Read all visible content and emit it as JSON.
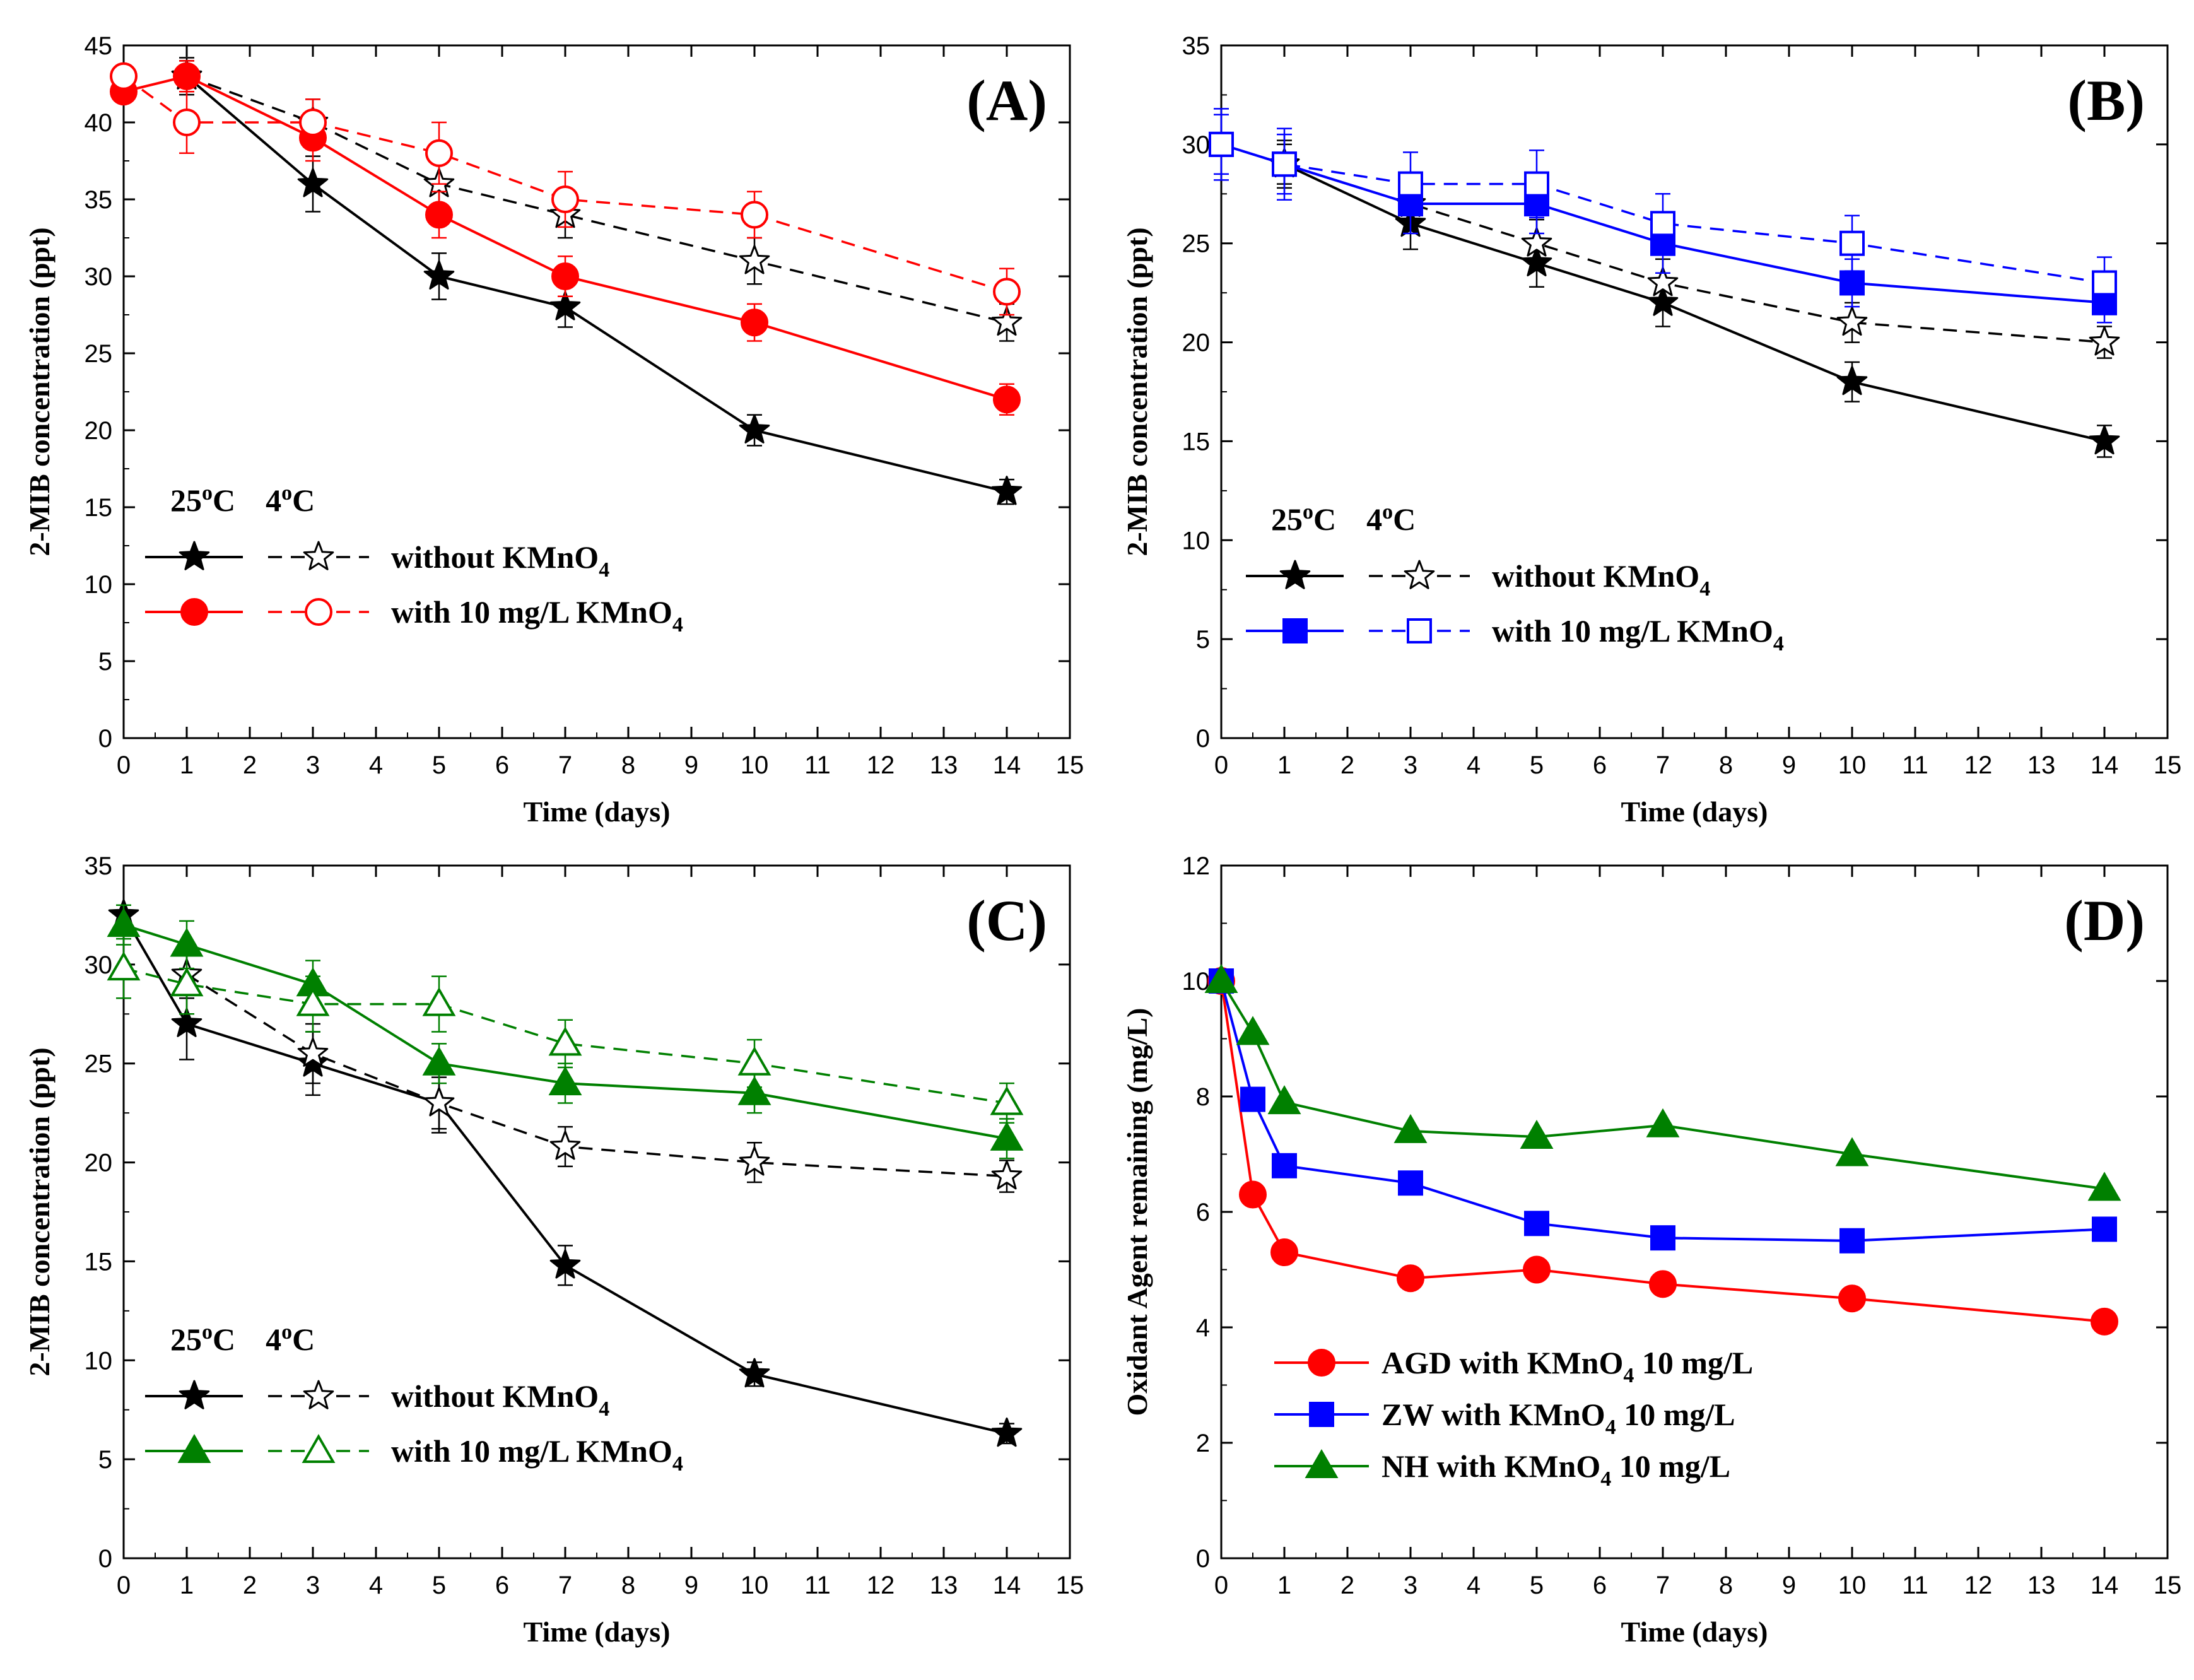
{
  "chart_data": [
    {
      "type": "line",
      "panel_label": "(A)",
      "xlabel": "Time (days)",
      "ylabel": "2-MIB concentration (ppt)",
      "xlim": [
        0,
        15
      ],
      "ylim": [
        0,
        45
      ],
      "xticks": [
        0,
        1,
        2,
        3,
        4,
        5,
        6,
        7,
        8,
        9,
        10,
        11,
        12,
        13,
        14,
        15
      ],
      "yticks": [
        0,
        5,
        10,
        15,
        20,
        25,
        30,
        35,
        40,
        45
      ],
      "legend": {
        "temp_25": "25",
        "temp_4": "4",
        "degree": "o",
        "celsius": "C",
        "entries": [
          {
            "prefix": "without KMnO",
            "subscript": "4"
          },
          {
            "prefix": "with 10 mg/L KMnO",
            "subscript": "4"
          }
        ]
      },
      "series": [
        {
          "name": "without KMnO4 25°C",
          "color": "#000000",
          "marker": "star",
          "filled": true,
          "dashed": false,
          "x": [
            1,
            3,
            5,
            7,
            10,
            14
          ],
          "y": [
            43,
            36,
            30,
            28,
            20,
            16
          ],
          "err": [
            1.2,
            1.8,
            1.5,
            1.3,
            1,
            0.8
          ]
        },
        {
          "name": "without KMnO4 4°C",
          "color": "#000000",
          "marker": "star",
          "filled": false,
          "dashed": true,
          "x": [
            1,
            3,
            5,
            7,
            10,
            14
          ],
          "y": [
            43,
            40,
            36,
            34,
            31,
            27
          ],
          "err": [
            1,
            1.5,
            1.5,
            1.5,
            1.5,
            1.2
          ]
        },
        {
          "name": "with 10 mg/L KMnO4 25°C",
          "color": "#ff0000",
          "marker": "circle",
          "filled": true,
          "dashed": false,
          "x": [
            0,
            1,
            3,
            5,
            7,
            10,
            14
          ],
          "y": [
            42,
            43,
            39,
            34,
            30,
            27,
            22
          ],
          "err": [
            0,
            1,
            1.5,
            1.5,
            1.3,
            1.2,
            1
          ]
        },
        {
          "name": "with 10 mg/L KMnO4 4°C",
          "color": "#ff0000",
          "marker": "circle",
          "filled": false,
          "dashed": true,
          "x": [
            0,
            1,
            3,
            5,
            7,
            10,
            14
          ],
          "y": [
            43,
            40,
            40,
            38,
            35,
            34,
            29
          ],
          "err": [
            0,
            2,
            1.5,
            2,
            1.8,
            1.5,
            1.5
          ]
        }
      ]
    },
    {
      "type": "line",
      "panel_label": "(B)",
      "xlabel": "Time (days)",
      "ylabel": "2-MIB concentration (ppt)",
      "xlim": [
        0,
        15
      ],
      "ylim": [
        0,
        35
      ],
      "xticks": [
        0,
        1,
        2,
        3,
        4,
        5,
        6,
        7,
        8,
        9,
        10,
        11,
        12,
        13,
        14,
        15
      ],
      "yticks": [
        0,
        5,
        10,
        15,
        20,
        25,
        30,
        35
      ],
      "legend": {
        "temp_25": "25",
        "temp_4": "4",
        "degree": "o",
        "celsius": "C",
        "entries": [
          {
            "prefix": "without KMnO",
            "subscript": "4"
          },
          {
            "prefix": "with 10 mg/L KMnO",
            "subscript": "4"
          }
        ]
      },
      "series": [
        {
          "name": "without KMnO4 25°C",
          "color": "#000000",
          "marker": "star",
          "filled": true,
          "dashed": false,
          "x": [
            1,
            3,
            5,
            7,
            10,
            14
          ],
          "y": [
            29,
            26,
            24,
            22,
            18,
            15
          ],
          "err": [
            1.2,
            1.3,
            1.2,
            1.2,
            1,
            0.8
          ]
        },
        {
          "name": "without KMnO4 4°C",
          "color": "#000000",
          "marker": "star",
          "filled": false,
          "dashed": true,
          "x": [
            1,
            3,
            5,
            7,
            10,
            14
          ],
          "y": [
            29,
            27,
            25,
            23,
            21,
            20
          ],
          "err": [
            1,
            1.3,
            1.2,
            1.2,
            1,
            0.8
          ]
        },
        {
          "name": "with 10 mg/L KMnO4 25°C",
          "color": "#0000ff",
          "marker": "square",
          "filled": true,
          "dashed": false,
          "x": [
            0,
            1,
            3,
            5,
            7,
            10,
            14
          ],
          "y": [
            30,
            29,
            27,
            27,
            25,
            23,
            22
          ],
          "err": [
            1.5,
            1.5,
            1.5,
            1.5,
            1.5,
            1.2,
            1
          ]
        },
        {
          "name": "with 10 mg/L KMnO4 4°C",
          "color": "#0000ff",
          "marker": "square",
          "filled": false,
          "dashed": true,
          "x": [
            0,
            1,
            3,
            5,
            7,
            10,
            14
          ],
          "y": [
            30,
            29,
            28,
            28,
            26,
            25,
            23
          ],
          "err": [
            1.8,
            1.8,
            1.6,
            1.7,
            1.5,
            1.4,
            1.3
          ]
        }
      ]
    },
    {
      "type": "line",
      "panel_label": "(C)",
      "xlabel": "Time (days)",
      "ylabel": "2-MIB concentration (ppt)",
      "xlim": [
        0,
        15
      ],
      "ylim": [
        0,
        35
      ],
      "xticks": [
        0,
        1,
        2,
        3,
        4,
        5,
        6,
        7,
        8,
        9,
        10,
        11,
        12,
        13,
        14,
        15
      ],
      "yticks": [
        0,
        5,
        10,
        15,
        20,
        25,
        30,
        35
      ],
      "legend": {
        "temp_25": "25",
        "temp_4": "4",
        "degree": "o",
        "celsius": "C",
        "entries": [
          {
            "prefix": "without KMnO",
            "subscript": "4"
          },
          {
            "prefix": "with 10 mg/L KMnO",
            "subscript": "4"
          }
        ]
      },
      "series": [
        {
          "name": "without KMnO4 25°C",
          "color": "#000000",
          "marker": "star",
          "filled": true,
          "dashed": false,
          "x": [
            0,
            1,
            3,
            5,
            7,
            10,
            14
          ],
          "y": [
            32.5,
            27,
            25,
            23,
            14.8,
            9.3,
            6.3
          ],
          "err": [
            0.5,
            1.8,
            1.6,
            1.5,
            1,
            0.6,
            0.5
          ]
        },
        {
          "name": "without KMnO4 4°C",
          "color": "#000000",
          "marker": "star",
          "filled": false,
          "dashed": true,
          "x": [
            1,
            3,
            5,
            7,
            10,
            14
          ],
          "y": [
            29.5,
            25.5,
            23,
            20.8,
            20,
            19.3
          ],
          "err": [
            1.2,
            1.5,
            1.3,
            1,
            1,
            0.8
          ]
        },
        {
          "name": "with 10 mg/L KMnO4 25°C",
          "color": "#008000",
          "marker": "triangle",
          "filled": true,
          "dashed": false,
          "x": [
            0,
            1,
            3,
            5,
            7,
            10,
            14
          ],
          "y": [
            32,
            31,
            29,
            25,
            24,
            23.5,
            21.2
          ],
          "err": [
            1,
            1.2,
            1.2,
            1,
            1,
            1,
            1
          ]
        },
        {
          "name": "with 10 mg/L KMnO4 4°C",
          "color": "#008000",
          "marker": "triangle",
          "filled": false,
          "dashed": true,
          "x": [
            0,
            1,
            3,
            5,
            7,
            10,
            14
          ],
          "y": [
            29.8,
            29,
            28,
            28,
            26,
            25,
            23
          ],
          "err": [
            1.5,
            1.5,
            1.4,
            1.4,
            1.2,
            1.2,
            1
          ]
        }
      ]
    },
    {
      "type": "line",
      "panel_label": "(D)",
      "xlabel": "Time (days)",
      "ylabel": "Oxidant Agent remaining (mg/L)",
      "xlim": [
        0,
        15
      ],
      "ylim": [
        0,
        12
      ],
      "xticks": [
        0,
        1,
        2,
        3,
        4,
        5,
        6,
        7,
        8,
        9,
        10,
        11,
        12,
        13,
        14,
        15
      ],
      "yticks": [
        0,
        2,
        4,
        6,
        8,
        10,
        12
      ],
      "legend": {
        "entries": [
          {
            "prefix": "AGD with KMnO",
            "subscript": "4",
            "suffix": " 10 mg/L"
          },
          {
            "prefix": "ZW with KMnO",
            "subscript": "4",
            "suffix": " 10 mg/L"
          },
          {
            "prefix": "NH with KMnO",
            "subscript": "4",
            "suffix": " 10 mg/L"
          }
        ]
      },
      "series": [
        {
          "name": "AGD with KMnO4 10 mg/L",
          "color": "#ff0000",
          "marker": "circle",
          "filled": true,
          "dashed": false,
          "x": [
            0,
            0.5,
            1,
            3,
            5,
            7,
            10,
            14
          ],
          "y": [
            10,
            6.3,
            5.3,
            4.85,
            5,
            4.75,
            4.5,
            4.1
          ]
        },
        {
          "name": "ZW with KMnO4 10 mg/L",
          "color": "#0000ff",
          "marker": "square",
          "filled": true,
          "dashed": false,
          "x": [
            0,
            0.5,
            1,
            3,
            5,
            7,
            10,
            14
          ],
          "y": [
            10,
            7.95,
            6.8,
            6.5,
            5.8,
            5.55,
            5.5,
            5.7
          ]
        },
        {
          "name": "NH with KMnO4 10 mg/L",
          "color": "#008000",
          "marker": "triangle",
          "filled": true,
          "dashed": false,
          "x": [
            0,
            0.5,
            1,
            3,
            5,
            7,
            10,
            14
          ],
          "y": [
            10,
            9.1,
            7.9,
            7.4,
            7.3,
            7.5,
            7,
            6.4
          ]
        }
      ]
    }
  ]
}
